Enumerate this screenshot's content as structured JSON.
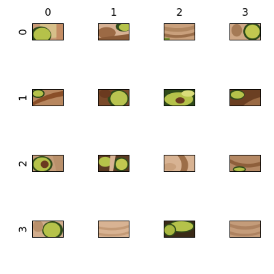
{
  "column_labels": [
    "0",
    "1",
    "2",
    "3"
  ],
  "row_labels": [
    "0",
    "1",
    "2",
    "3"
  ],
  "palette": {
    "wood_light": "#d8b393",
    "wood_mid": "#b98a63",
    "wood_dark": "#7a4a2a",
    "avocado_flesh": "#b5c24a",
    "avocado_light": "#d9dc7a",
    "avocado_skin": "#2f4a1a",
    "pit": "#6b3a1f"
  },
  "tiles": [
    [
      {
        "content": "avocado"
      },
      {
        "content": "avocado-wood"
      },
      {
        "content": "wood"
      },
      {
        "content": "avocado"
      }
    ],
    [
      {
        "content": "avocado-wood"
      },
      {
        "content": "avocado-pit"
      },
      {
        "content": "avocado"
      },
      {
        "content": "avocado-wood"
      }
    ],
    [
      {
        "content": "avocado-pit"
      },
      {
        "content": "avocado"
      },
      {
        "content": "wood"
      },
      {
        "content": "wood-avocado"
      }
    ],
    [
      {
        "content": "avocado"
      },
      {
        "content": "wood"
      },
      {
        "content": "avocado-wood"
      },
      {
        "content": "wood"
      }
    ]
  ]
}
